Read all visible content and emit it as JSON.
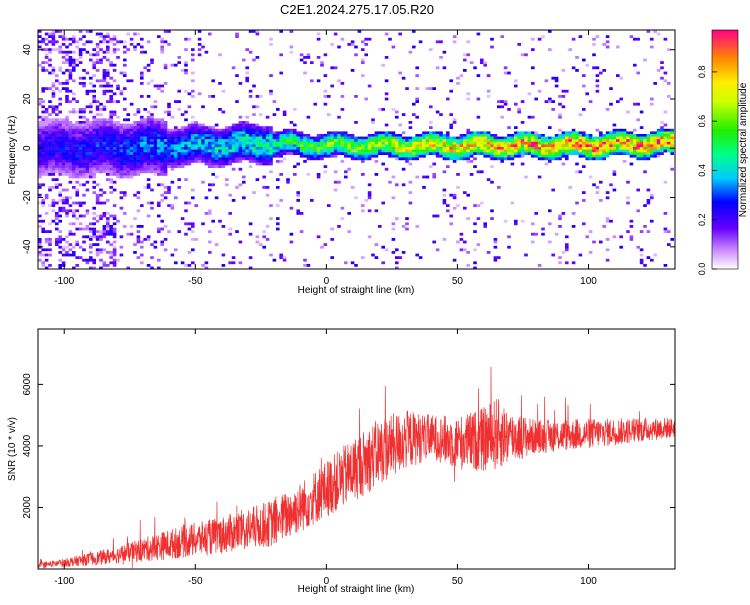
{
  "page_title": "C2E1.2024.275.17.05.R20",
  "chart_data": [
    {
      "type": "heatmap",
      "title": "C2E1.2024.275.17.05.R20",
      "xlabel": "Height of straight line (km)",
      "ylabel": "Frequency (Hz)",
      "xlim": [
        -110,
        133
      ],
      "ylim": [
        -49,
        48
      ],
      "xticks": [
        "-100",
        "-50",
        "0",
        "50",
        "100"
      ],
      "xtick_values": [
        -100,
        -50,
        0,
        50,
        100
      ],
      "yticks": [
        "-40",
        "-20",
        "0",
        "20",
        "40"
      ],
      "ytick_values": [
        -40,
        -20,
        0,
        20,
        40
      ],
      "colorbar": {
        "label": "Normalized spectral amplitude",
        "range": [
          0.0,
          0.97
        ],
        "ticks": [
          "0.0",
          "0.2",
          "0.4",
          "0.6",
          "0.8"
        ],
        "tick_values": [
          0.0,
          0.2,
          0.4,
          0.6,
          0.8
        ]
      },
      "ridge": {
        "description_x": [
          -110,
          -80,
          -50,
          -20,
          0,
          30,
          60,
          90,
          133
        ],
        "center_freq_hz": [
          0,
          0,
          1,
          2,
          1,
          1,
          1,
          1,
          2
        ],
        "peak_amplitude": [
          0.25,
          0.3,
          0.4,
          0.5,
          0.6,
          0.75,
          0.85,
          0.9,
          0.9
        ]
      }
    },
    {
      "type": "line",
      "xlabel": "Height of straight line (km)",
      "ylabel": "SNR (10 * v/v)",
      "xlim": [
        -110,
        133
      ],
      "ylim": [
        0,
        7800
      ],
      "xticks": [
        "-100",
        "-50",
        "0",
        "50",
        "100"
      ],
      "xtick_values": [
        -100,
        -50,
        0,
        50,
        100
      ],
      "yticks": [
        "2000",
        "4000",
        "6000"
      ],
      "ytick_values": [
        2000,
        4000,
        6000
      ],
      "color": "#f03030",
      "envelope": {
        "x": [
          -110,
          -100,
          -80,
          -60,
          -40,
          -20,
          -10,
          0,
          10,
          20,
          30,
          40,
          50,
          60,
          65,
          70,
          80,
          100,
          133
        ],
        "mean": [
          120,
          200,
          450,
          800,
          1100,
          1500,
          2000,
          2600,
          3200,
          3800,
          4200,
          4300,
          4100,
          4200,
          4400,
          4300,
          4300,
          4400,
          4600
        ],
        "spread": [
          150,
          250,
          500,
          900,
          1100,
          1400,
          1500,
          1700,
          1900,
          2000,
          1800,
          1300,
          1600,
          1900,
          2200,
          1600,
          1000,
          900,
          600
        ]
      }
    }
  ]
}
